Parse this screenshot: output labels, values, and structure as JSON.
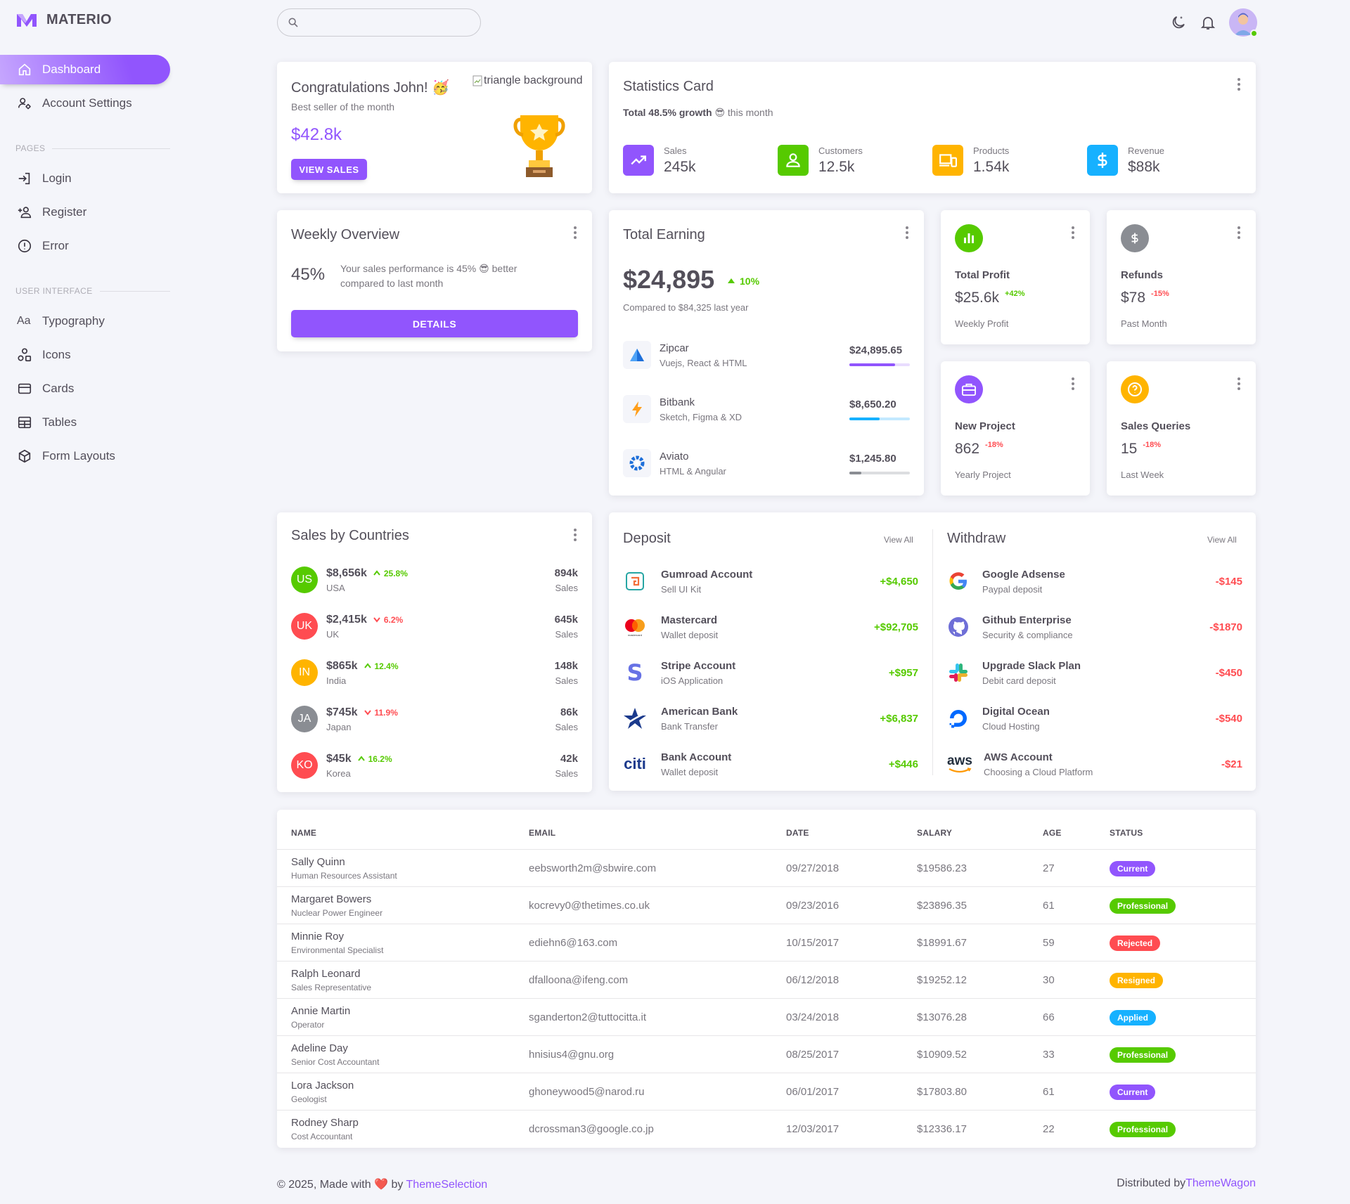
{
  "brand": {
    "name": "MATERIO"
  },
  "sidebar": {
    "items": [
      {
        "label": "Dashboard"
      },
      {
        "label": "Account Settings"
      }
    ],
    "pages_section": "PAGES",
    "pages": [
      {
        "label": "Login"
      },
      {
        "label": "Register"
      },
      {
        "label": "Error"
      }
    ],
    "ui_section": "USER INTERFACE",
    "ui": [
      {
        "label": "Typography"
      },
      {
        "label": "Icons"
      },
      {
        "label": "Cards"
      },
      {
        "label": "Tables"
      },
      {
        "label": "Form Layouts"
      }
    ],
    "typography_glyph": "Aa"
  },
  "search": {
    "placeholder": ""
  },
  "congrats": {
    "title": "Congratulations John! 🥳",
    "subtitle": "Best seller of the month",
    "amount": "$42.8k",
    "button": "VIEW SALES",
    "broken_image_alt": "triangle background"
  },
  "statistics": {
    "title": "Statistics Card",
    "growth_bold": "Total 48.5% growth",
    "growth_rest": "😎 this month",
    "items": [
      {
        "label": "Sales",
        "value": "245k",
        "color": "#9155fd"
      },
      {
        "label": "Customers",
        "value": "12.5k",
        "color": "#56ca00"
      },
      {
        "label": "Products",
        "value": "1.54k",
        "color": "#ffb400"
      },
      {
        "label": "Revenue",
        "value": "$88k",
        "color": "#16b1ff"
      }
    ]
  },
  "weekly": {
    "title": "Weekly Overview",
    "percent": "45%",
    "text": "Your sales performance is 45% 😎 better compared to last month",
    "button": "DETAILS"
  },
  "earning": {
    "title": "Total Earning",
    "amount": "$24,895",
    "change": "10%",
    "compare": "Compared to $84,325 last year",
    "items": [
      {
        "name": "Zipcar",
        "sub": "Vuejs, React & HTML",
        "amount": "$24,895.65",
        "progress": 0.75,
        "color": "#9155fd"
      },
      {
        "name": "Bitbank",
        "sub": "Sketch, Figma & XD",
        "amount": "$8,650.20",
        "progress": 0.5,
        "color": "#16b1ff"
      },
      {
        "name": "Aviato",
        "sub": "HTML & Angular",
        "amount": "$1,245.80",
        "progress": 0.2,
        "color": "#8a8d93"
      }
    ]
  },
  "mini": [
    {
      "title": "Total Profit",
      "value": "$25.6k",
      "change": "+42%",
      "change_color": "#56ca00",
      "sub": "Weekly Profit",
      "icon_color": "#56ca00"
    },
    {
      "title": "Refunds",
      "value": "$78",
      "change": "-15%",
      "change_color": "#ff4c51",
      "sub": "Past Month",
      "icon_color": "#8a8d93"
    },
    {
      "title": "New Project",
      "value": "862",
      "change": "-18%",
      "change_color": "#ff4c51",
      "sub": "Yearly Project",
      "icon_color": "#9155fd"
    },
    {
      "title": "Sales Queries",
      "value": "15",
      "change": "-18%",
      "change_color": "#ff4c51",
      "sub": "Last Week",
      "icon_color": "#ffb400"
    }
  ],
  "countries": {
    "title": "Sales by Countries",
    "sales_label": "Sales",
    "items": [
      {
        "code": "US",
        "amount": "$8,656k",
        "change": "25.8%",
        "up": true,
        "name": "USA",
        "sales": "894k",
        "color": "#56ca00"
      },
      {
        "code": "UK",
        "amount": "$2,415k",
        "change": "6.2%",
        "up": false,
        "name": "UK",
        "sales": "645k",
        "color": "#ff4c51"
      },
      {
        "code": "IN",
        "amount": "$865k",
        "change": "12.4%",
        "up": true,
        "name": "India",
        "sales": "148k",
        "color": "#ffb400"
      },
      {
        "code": "JA",
        "amount": "$745k",
        "change": "11.9%",
        "up": false,
        "name": "Japan",
        "sales": "86k",
        "color": "#8a8d93"
      },
      {
        "code": "KO",
        "amount": "$45k",
        "change": "16.2%",
        "up": true,
        "name": "Korea",
        "sales": "42k",
        "color": "#ff4c51"
      }
    ]
  },
  "deposit": {
    "title": "Deposit",
    "view_all": "View All",
    "items": [
      {
        "name": "Gumroad Account",
        "sub": "Sell UI Kit",
        "amount": "+$4,650"
      },
      {
        "name": "Mastercard",
        "sub": "Wallet deposit",
        "amount": "+$92,705"
      },
      {
        "name": "Stripe Account",
        "sub": "iOS Application",
        "amount": "+$957"
      },
      {
        "name": "American Bank",
        "sub": "Bank Transfer",
        "amount": "+$6,837"
      },
      {
        "name": "Bank Account",
        "sub": "Wallet deposit",
        "amount": "+$446"
      }
    ]
  },
  "withdraw": {
    "title": "Withdraw",
    "view_all": "View All",
    "items": [
      {
        "name": "Google Adsense",
        "sub": "Paypal deposit",
        "amount": "-$145"
      },
      {
        "name": "Github Enterprise",
        "sub": "Security & compliance",
        "amount": "-$1870"
      },
      {
        "name": "Upgrade Slack Plan",
        "sub": "Debit card deposit",
        "amount": "-$450"
      },
      {
        "name": "Digital Ocean",
        "sub": "Cloud Hosting",
        "amount": "-$540"
      },
      {
        "name": "AWS Account",
        "sub": "Choosing a Cloud Platform",
        "amount": "-$21"
      }
    ]
  },
  "logos": {
    "citi": "citi",
    "aws": "aws",
    "stripe": "S",
    "mastercard_text": "mastercard"
  },
  "table": {
    "headers": [
      "NAME",
      "EMAIL",
      "DATE",
      "SALARY",
      "AGE",
      "STATUS"
    ],
    "rows": [
      {
        "name": "Sally Quinn",
        "role": "Human Resources Assistant",
        "email": "eebsworth2m@sbwire.com",
        "date": "09/27/2018",
        "salary": "$19586.23",
        "age": "27",
        "status": "Current",
        "color": "#9155fd"
      },
      {
        "name": "Margaret Bowers",
        "role": "Nuclear Power Engineer",
        "email": "kocrevy0@thetimes.co.uk",
        "date": "09/23/2016",
        "salary": "$23896.35",
        "age": "61",
        "status": "Professional",
        "color": "#56ca00"
      },
      {
        "name": "Minnie Roy",
        "role": "Environmental Specialist",
        "email": "ediehn6@163.com",
        "date": "10/15/2017",
        "salary": "$18991.67",
        "age": "59",
        "status": "Rejected",
        "color": "#ff4c51"
      },
      {
        "name": "Ralph Leonard",
        "role": "Sales Representative",
        "email": "dfalloona@ifeng.com",
        "date": "06/12/2018",
        "salary": "$19252.12",
        "age": "30",
        "status": "Resigned",
        "color": "#ffb400"
      },
      {
        "name": "Annie Martin",
        "role": "Operator",
        "email": "sganderton2@tuttocitta.it",
        "date": "03/24/2018",
        "salary": "$13076.28",
        "age": "66",
        "status": "Applied",
        "color": "#16b1ff"
      },
      {
        "name": "Adeline Day",
        "role": "Senior Cost Accountant",
        "email": "hnisius4@gnu.org",
        "date": "08/25/2017",
        "salary": "$10909.52",
        "age": "33",
        "status": "Professional",
        "color": "#56ca00"
      },
      {
        "name": "Lora Jackson",
        "role": "Geologist",
        "email": "ghoneywood5@narod.ru",
        "date": "06/01/2017",
        "salary": "$17803.80",
        "age": "61",
        "status": "Current",
        "color": "#9155fd"
      },
      {
        "name": "Rodney Sharp",
        "role": "Cost Accountant",
        "email": "dcrossman3@google.co.jp",
        "date": "12/03/2017",
        "salary": "$12336.17",
        "age": "22",
        "status": "Professional",
        "color": "#56ca00"
      }
    ]
  },
  "footer": {
    "left_prefix": "© 2025, Made with",
    "heart": "❤️",
    "by": "by",
    "left_link": "ThemeSelection",
    "right_prefix": "Distributed by",
    "right_link": "ThemeWagon"
  },
  "colors": {
    "primary": "#9155fd",
    "success": "#56ca00",
    "error": "#ff4c51",
    "warning": "#ffb400",
    "info": "#16b1ff",
    "secondary": "#8a8d93"
  }
}
